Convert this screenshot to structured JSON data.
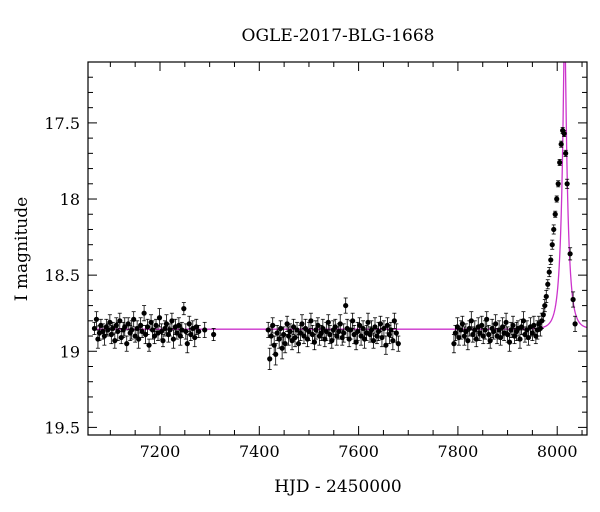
{
  "chart_data": {
    "type": "scatter",
    "title": "OGLE-2017-BLG-1668",
    "xlabel": "HJD - 2450000",
    "ylabel": "I magnitude",
    "xlim": [
      7055,
      8060
    ],
    "ylim": [
      19.55,
      17.1
    ],
    "y_inverted": true,
    "grid": false,
    "x_ticks": [
      7200,
      7400,
      7600,
      7800,
      8000
    ],
    "y_ticks": [
      17.5,
      18,
      18.5,
      19,
      19.5
    ],
    "x_tick_labels": [
      "7200",
      "7400",
      "7600",
      "7800",
      "8000"
    ],
    "y_tick_labels": [
      "17.5",
      "18",
      "18.5",
      "19",
      "19.5"
    ],
    "colors": {
      "points": "#000000",
      "model": "#cc33cc"
    },
    "model": {
      "baseline_mag": 18.855,
      "t0": 8015,
      "u0": 0.16,
      "tE": 13,
      "x_start": 7065,
      "x_end": 8060
    },
    "series": [
      {
        "values": [
          [
            7068,
            18.85,
            0.04
          ],
          [
            7072,
            18.79,
            0.05
          ],
          [
            7075,
            18.92,
            0.06
          ],
          [
            7078,
            18.88,
            0.05
          ],
          [
            7081,
            18.83,
            0.04
          ],
          [
            7085,
            18.87,
            0.05
          ],
          [
            7088,
            18.9,
            0.06
          ],
          [
            7092,
            18.84,
            0.05
          ],
          [
            7095,
            18.86,
            0.04
          ],
          [
            7099,
            18.81,
            0.05
          ],
          [
            7102,
            18.89,
            0.06
          ],
          [
            7105,
            18.85,
            0.04
          ],
          [
            7109,
            18.93,
            0.05
          ],
          [
            7112,
            18.83,
            0.05
          ],
          [
            7115,
            18.87,
            0.06
          ],
          [
            7119,
            18.8,
            0.05
          ],
          [
            7122,
            18.91,
            0.04
          ],
          [
            7126,
            18.86,
            0.05
          ],
          [
            7129,
            18.84,
            0.06
          ],
          [
            7133,
            18.95,
            0.05
          ],
          [
            7136,
            18.82,
            0.04
          ],
          [
            7140,
            18.88,
            0.05
          ],
          [
            7143,
            18.86,
            0.06
          ],
          [
            7147,
            18.79,
            0.05
          ],
          [
            7150,
            18.9,
            0.04
          ],
          [
            7154,
            18.85,
            0.05
          ],
          [
            7157,
            18.92,
            0.06
          ],
          [
            7161,
            18.83,
            0.05
          ],
          [
            7164,
            18.87,
            0.04
          ],
          [
            7168,
            18.75,
            0.05
          ],
          [
            7171,
            18.89,
            0.06
          ],
          [
            7175,
            18.84,
            0.05
          ],
          [
            7178,
            18.96,
            0.04
          ],
          [
            7182,
            18.81,
            0.05
          ],
          [
            7185,
            18.86,
            0.06
          ],
          [
            7189,
            18.9,
            0.05
          ],
          [
            7192,
            18.83,
            0.04
          ],
          [
            7196,
            18.88,
            0.05
          ],
          [
            7199,
            18.78,
            0.06
          ],
          [
            7203,
            18.87,
            0.05
          ],
          [
            7206,
            18.93,
            0.04
          ],
          [
            7210,
            18.85,
            0.05
          ],
          [
            7213,
            18.82,
            0.06
          ],
          [
            7217,
            18.89,
            0.05
          ],
          [
            7220,
            18.86,
            0.04
          ],
          [
            7224,
            18.8,
            0.05
          ],
          [
            7227,
            18.92,
            0.06
          ],
          [
            7231,
            18.84,
            0.05
          ],
          [
            7234,
            18.88,
            0.04
          ],
          [
            7238,
            18.83,
            0.05
          ],
          [
            7241,
            18.9,
            0.06
          ],
          [
            7244,
            18.86,
            0.05
          ],
          [
            7248,
            18.72,
            0.04
          ],
          [
            7252,
            18.87,
            0.05
          ],
          [
            7255,
            18.95,
            0.06
          ],
          [
            7259,
            18.82,
            0.05
          ],
          [
            7262,
            18.89,
            0.04
          ],
          [
            7266,
            18.85,
            0.05
          ],
          [
            7270,
            18.91,
            0.06
          ],
          [
            7273,
            18.84,
            0.05
          ],
          [
            7278,
            18.87,
            0.04
          ],
          [
            7290,
            18.86,
            0.05
          ],
          [
            7308,
            18.89,
            0.04
          ],
          [
            7418,
            18.86,
            0.05
          ],
          [
            7421,
            19.05,
            0.07
          ],
          [
            7424,
            18.9,
            0.06
          ],
          [
            7427,
            18.83,
            0.05
          ],
          [
            7430,
            18.96,
            0.06
          ],
          [
            7433,
            19.02,
            0.07
          ],
          [
            7436,
            18.88,
            0.05
          ],
          [
            7440,
            18.92,
            0.06
          ],
          [
            7443,
            18.85,
            0.05
          ],
          [
            7446,
            18.98,
            0.07
          ],
          [
            7449,
            18.89,
            0.05
          ],
          [
            7452,
            18.95,
            0.06
          ],
          [
            7456,
            18.82,
            0.05
          ],
          [
            7459,
            18.9,
            0.06
          ],
          [
            7462,
            18.87,
            0.05
          ],
          [
            7466,
            18.93,
            0.06
          ],
          [
            7469,
            18.84,
            0.05
          ],
          [
            7472,
            18.91,
            0.06
          ],
          [
            7476,
            18.86,
            0.05
          ],
          [
            7479,
            18.95,
            0.06
          ],
          [
            7483,
            18.88,
            0.05
          ],
          [
            7486,
            18.82,
            0.06
          ],
          [
            7490,
            18.9,
            0.05
          ],
          [
            7493,
            18.85,
            0.06
          ],
          [
            7497,
            18.92,
            0.05
          ],
          [
            7500,
            18.87,
            0.06
          ],
          [
            7504,
            18.8,
            0.05
          ],
          [
            7507,
            18.89,
            0.06
          ],
          [
            7511,
            18.94,
            0.05
          ],
          [
            7514,
            18.86,
            0.06
          ],
          [
            7518,
            18.83,
            0.05
          ],
          [
            7521,
            18.9,
            0.06
          ],
          [
            7525,
            18.88,
            0.05
          ],
          [
            7528,
            18.85,
            0.06
          ],
          [
            7532,
            18.92,
            0.05
          ],
          [
            7535,
            18.87,
            0.06
          ],
          [
            7539,
            18.81,
            0.05
          ],
          [
            7542,
            18.89,
            0.06
          ],
          [
            7546,
            18.93,
            0.05
          ],
          [
            7549,
            18.86,
            0.06
          ],
          [
            7553,
            18.84,
            0.05
          ],
          [
            7556,
            18.9,
            0.06
          ],
          [
            7560,
            18.87,
            0.05
          ],
          [
            7563,
            18.82,
            0.06
          ],
          [
            7567,
            18.91,
            0.05
          ],
          [
            7570,
            18.88,
            0.06
          ],
          [
            7574,
            18.7,
            0.05
          ],
          [
            7577,
            18.85,
            0.06
          ],
          [
            7581,
            18.92,
            0.05
          ],
          [
            7584,
            18.86,
            0.06
          ],
          [
            7588,
            18.8,
            0.05
          ],
          [
            7591,
            18.89,
            0.06
          ],
          [
            7595,
            18.94,
            0.05
          ],
          [
            7598,
            18.87,
            0.06
          ],
          [
            7602,
            18.83,
            0.05
          ],
          [
            7605,
            18.9,
            0.06
          ],
          [
            7609,
            18.85,
            0.05
          ],
          [
            7612,
            18.92,
            0.06
          ],
          [
            7616,
            18.88,
            0.05
          ],
          [
            7619,
            18.81,
            0.06
          ],
          [
            7623,
            18.89,
            0.05
          ],
          [
            7626,
            18.86,
            0.06
          ],
          [
            7630,
            18.93,
            0.05
          ],
          [
            7633,
            18.84,
            0.06
          ],
          [
            7637,
            18.9,
            0.05
          ],
          [
            7640,
            18.87,
            0.06
          ],
          [
            7644,
            18.82,
            0.05
          ],
          [
            7647,
            18.91,
            0.06
          ],
          [
            7651,
            18.85,
            0.05
          ],
          [
            7655,
            18.96,
            0.06
          ],
          [
            7658,
            18.83,
            0.05
          ],
          [
            7662,
            18.89,
            0.06
          ],
          [
            7665,
            18.86,
            0.05
          ],
          [
            7669,
            18.93,
            0.06
          ],
          [
            7672,
            18.8,
            0.05
          ],
          [
            7676,
            18.88,
            0.06
          ],
          [
            7680,
            18.95,
            0.05
          ],
          [
            7792,
            18.95,
            0.06
          ],
          [
            7795,
            18.88,
            0.05
          ],
          [
            7799,
            18.84,
            0.06
          ],
          [
            7802,
            18.91,
            0.05
          ],
          [
            7806,
            18.86,
            0.06
          ],
          [
            7809,
            18.82,
            0.05
          ],
          [
            7813,
            18.9,
            0.06
          ],
          [
            7816,
            18.87,
            0.05
          ],
          [
            7820,
            18.93,
            0.06
          ],
          [
            7823,
            18.85,
            0.05
          ],
          [
            7827,
            18.8,
            0.06
          ],
          [
            7830,
            18.89,
            0.05
          ],
          [
            7834,
            18.86,
            0.06
          ],
          [
            7837,
            18.92,
            0.05
          ],
          [
            7841,
            18.84,
            0.06
          ],
          [
            7844,
            18.88,
            0.05
          ],
          [
            7848,
            18.83,
            0.06
          ],
          [
            7851,
            18.9,
            0.05
          ],
          [
            7855,
            18.86,
            0.06
          ],
          [
            7858,
            18.79,
            0.05
          ],
          [
            7862,
            18.89,
            0.06
          ],
          [
            7865,
            18.93,
            0.05
          ],
          [
            7869,
            18.85,
            0.06
          ],
          [
            7872,
            18.87,
            0.05
          ],
          [
            7876,
            18.82,
            0.06
          ],
          [
            7879,
            18.9,
            0.05
          ],
          [
            7883,
            18.86,
            0.06
          ],
          [
            7886,
            18.91,
            0.05
          ],
          [
            7890,
            18.84,
            0.06
          ],
          [
            7893,
            18.88,
            0.05
          ],
          [
            7897,
            18.81,
            0.06
          ],
          [
            7900,
            18.89,
            0.05
          ],
          [
            7904,
            18.94,
            0.06
          ],
          [
            7907,
            18.86,
            0.05
          ],
          [
            7911,
            18.83,
            0.06
          ],
          [
            7914,
            18.9,
            0.05
          ],
          [
            7918,
            18.87,
            0.06
          ],
          [
            7921,
            18.85,
            0.05
          ],
          [
            7925,
            18.92,
            0.06
          ],
          [
            7928,
            18.84,
            0.05
          ],
          [
            7932,
            18.8,
            0.06
          ],
          [
            7935,
            18.89,
            0.05
          ],
          [
            7939,
            18.86,
            0.06
          ],
          [
            7942,
            18.91,
            0.05
          ],
          [
            7946,
            18.84,
            0.06
          ],
          [
            7950,
            18.88,
            0.05
          ],
          [
            7953,
            18.83,
            0.06
          ],
          [
            7957,
            18.9,
            0.05
          ],
          [
            7960,
            18.86,
            0.06
          ],
          [
            7963,
            18.82,
            0.05
          ],
          [
            7966,
            18.85,
            0.05
          ],
          [
            7969,
            18.8,
            0.05
          ],
          [
            7972,
            18.76,
            0.04
          ],
          [
            7975,
            18.7,
            0.04
          ],
          [
            7978,
            18.64,
            0.04
          ],
          [
            7981,
            18.56,
            0.03
          ],
          [
            7984,
            18.48,
            0.03
          ],
          [
            7987,
            18.4,
            0.03
          ],
          [
            7990,
            18.3,
            0.03
          ],
          [
            7993,
            18.2,
            0.03
          ],
          [
            7996,
            18.1,
            0.02
          ],
          [
            7999,
            18.0,
            0.02
          ],
          [
            8002,
            17.9,
            0.02
          ],
          [
            8005,
            17.76,
            0.02
          ],
          [
            8008,
            17.64,
            0.02
          ],
          [
            8011,
            17.55,
            0.02
          ],
          [
            8014,
            17.57,
            0.02
          ],
          [
            8017,
            17.7,
            0.02
          ],
          [
            8020,
            17.9,
            0.03
          ],
          [
            8026,
            18.36,
            0.04
          ],
          [
            8032,
            18.66,
            0.05
          ],
          [
            8036,
            18.82,
            0.05
          ]
        ]
      }
    ]
  }
}
